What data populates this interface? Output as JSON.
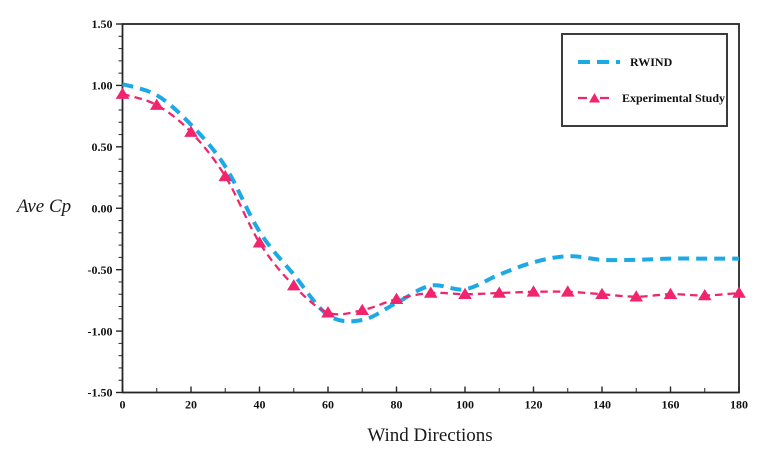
{
  "chart_data": {
    "type": "line",
    "title": "",
    "xlabel": "Wind Directions",
    "ylabel": "Ave Cp",
    "xlim": [
      0,
      180
    ],
    "ylim": [
      -1.5,
      1.5
    ],
    "xtick_major_step": 20,
    "xtick_minor_step": 10,
    "ytick_major_step": 0.5,
    "ytick_minor_step": 0.1,
    "ytick_labels": [
      "1.50",
      "1.00",
      "0.50",
      "0.00",
      "-0.50",
      "-1.00",
      "-1.50"
    ],
    "xtick_labels": [
      "0",
      "20",
      "40",
      "60",
      "80",
      "100",
      "120",
      "140",
      "160",
      "180"
    ],
    "grid": false,
    "legend_position": "top-right",
    "axis_color": "#262626",
    "background_color": "#ffffff",
    "x": [
      0,
      10,
      20,
      30,
      40,
      50,
      60,
      70,
      80,
      90,
      100,
      110,
      120,
      130,
      140,
      150,
      160,
      170,
      180
    ],
    "series": [
      {
        "name": "RWIND",
        "color": "#1CA9E5",
        "line_style": "dashed",
        "line_width": 4,
        "dash_pattern": "11 7",
        "marker": "none",
        "values": [
          1.01,
          0.92,
          0.68,
          0.34,
          -0.19,
          -0.54,
          -0.87,
          -0.91,
          -0.77,
          -0.63,
          -0.66,
          -0.54,
          -0.44,
          -0.39,
          -0.42,
          -0.42,
          -0.41,
          -0.41,
          -0.41
        ]
      },
      {
        "name": "Experimental Study",
        "color": "#F0256E",
        "line_style": "dashed",
        "line_width": 2.3,
        "dash_pattern": "7.5 5",
        "marker": "triangle",
        "values": [
          0.93,
          0.84,
          0.62,
          0.26,
          -0.28,
          -0.63,
          -0.85,
          -0.83,
          -0.74,
          -0.69,
          -0.7,
          -0.69,
          -0.68,
          -0.68,
          -0.7,
          -0.72,
          -0.7,
          -0.71,
          -0.69
        ]
      }
    ]
  }
}
